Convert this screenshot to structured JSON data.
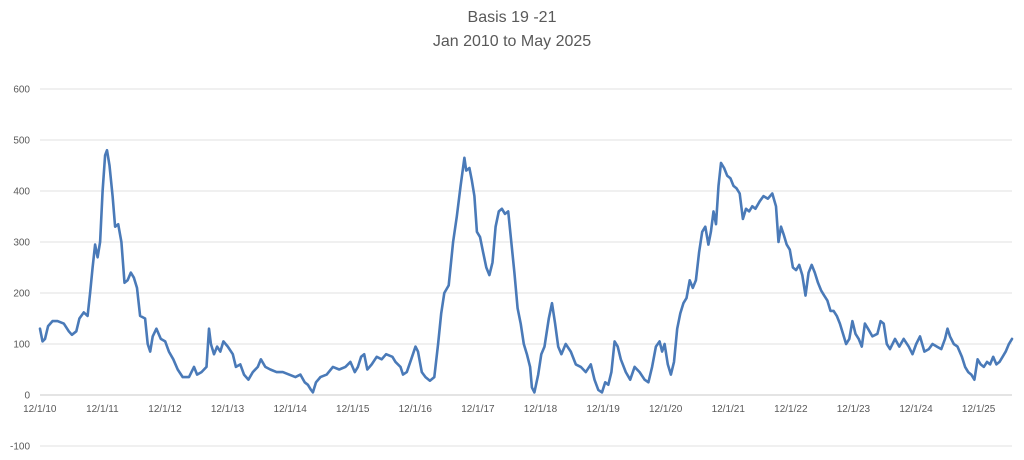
{
  "chart_data": {
    "type": "line",
    "title": "Basis 19 -21",
    "subtitle": "Jan 2010 to May 2025",
    "xlabel": "",
    "ylabel": "",
    "ylim": [
      -100,
      600
    ],
    "y_ticks": [
      "-100",
      "0",
      "100",
      "200",
      "300",
      "400",
      "500",
      "600"
    ],
    "x_tick_labels": [
      "12/1/10",
      "12/1/11",
      "12/1/12",
      "12/1/13",
      "12/1/14",
      "12/1/15",
      "12/1/16",
      "12/1/17",
      "12/1/18",
      "12/1/19",
      "12/1/20",
      "12/1/21",
      "12/1/22",
      "12/1/23",
      "12/1/24",
      "12/1/25"
    ],
    "x_range": [
      2010.92,
      2026.45
    ],
    "grid": "horizontal",
    "legend": "none",
    "line_color": "#4a7ab8",
    "series": [
      {
        "points": [
          [
            2010.92,
            130
          ],
          [
            2010.96,
            105
          ],
          [
            2011.0,
            110
          ],
          [
            2011.05,
            135
          ],
          [
            2011.12,
            145
          ],
          [
            2011.2,
            145
          ],
          [
            2011.3,
            140
          ],
          [
            2011.38,
            125
          ],
          [
            2011.43,
            118
          ],
          [
            2011.5,
            125
          ],
          [
            2011.55,
            150
          ],
          [
            2011.62,
            162
          ],
          [
            2011.68,
            155
          ],
          [
            2011.72,
            200
          ],
          [
            2011.76,
            250
          ],
          [
            2011.8,
            295
          ],
          [
            2011.84,
            270
          ],
          [
            2011.88,
            300
          ],
          [
            2011.92,
            400
          ],
          [
            2011.96,
            470
          ],
          [
            2011.99,
            480
          ],
          [
            2012.03,
            450
          ],
          [
            2012.08,
            390
          ],
          [
            2012.12,
            330
          ],
          [
            2012.17,
            335
          ],
          [
            2012.22,
            300
          ],
          [
            2012.27,
            220
          ],
          [
            2012.32,
            225
          ],
          [
            2012.37,
            240
          ],
          [
            2012.42,
            230
          ],
          [
            2012.47,
            210
          ],
          [
            2012.52,
            155
          ],
          [
            2012.6,
            150
          ],
          [
            2012.64,
            100
          ],
          [
            2012.68,
            85
          ],
          [
            2012.72,
            115
          ],
          [
            2012.78,
            130
          ],
          [
            2012.85,
            110
          ],
          [
            2012.92,
            105
          ],
          [
            2012.98,
            85
          ],
          [
            2013.05,
            70
          ],
          [
            2013.12,
            50
          ],
          [
            2013.2,
            35
          ],
          [
            2013.3,
            35
          ],
          [
            2013.38,
            55
          ],
          [
            2013.43,
            40
          ],
          [
            2013.5,
            45
          ],
          [
            2013.58,
            55
          ],
          [
            2013.62,
            130
          ],
          [
            2013.65,
            100
          ],
          [
            2013.7,
            80
          ],
          [
            2013.75,
            95
          ],
          [
            2013.8,
            85
          ],
          [
            2013.85,
            105
          ],
          [
            2013.92,
            95
          ],
          [
            2014.0,
            80
          ],
          [
            2014.05,
            55
          ],
          [
            2014.12,
            60
          ],
          [
            2014.18,
            40
          ],
          [
            2014.25,
            30
          ],
          [
            2014.32,
            45
          ],
          [
            2014.4,
            55
          ],
          [
            2014.45,
            70
          ],
          [
            2014.52,
            55
          ],
          [
            2014.6,
            50
          ],
          [
            2014.7,
            45
          ],
          [
            2014.8,
            45
          ],
          [
            2014.9,
            40
          ],
          [
            2015.0,
            35
          ],
          [
            2015.08,
            40
          ],
          [
            2015.15,
            25
          ],
          [
            2015.2,
            20
          ],
          [
            2015.25,
            10
          ],
          [
            2015.28,
            5
          ],
          [
            2015.33,
            25
          ],
          [
            2015.4,
            35
          ],
          [
            2015.5,
            40
          ],
          [
            2015.6,
            55
          ],
          [
            2015.7,
            50
          ],
          [
            2015.8,
            55
          ],
          [
            2015.88,
            65
          ],
          [
            2015.95,
            45
          ],
          [
            2016.0,
            55
          ],
          [
            2016.05,
            75
          ],
          [
            2016.1,
            80
          ],
          [
            2016.15,
            50
          ],
          [
            2016.22,
            60
          ],
          [
            2016.3,
            75
          ],
          [
            2016.38,
            70
          ],
          [
            2016.45,
            80
          ],
          [
            2016.55,
            75
          ],
          [
            2016.6,
            65
          ],
          [
            2016.68,
            55
          ],
          [
            2016.72,
            40
          ],
          [
            2016.78,
            45
          ],
          [
            2016.85,
            70
          ],
          [
            2016.92,
            95
          ],
          [
            2016.96,
            85
          ],
          [
            2017.02,
            45
          ],
          [
            2017.08,
            35
          ],
          [
            2017.15,
            28
          ],
          [
            2017.22,
            35
          ],
          [
            2017.28,
            100
          ],
          [
            2017.33,
            160
          ],
          [
            2017.38,
            200
          ],
          [
            2017.45,
            215
          ],
          [
            2017.52,
            300
          ],
          [
            2017.58,
            350
          ],
          [
            2017.64,
            410
          ],
          [
            2017.7,
            465
          ],
          [
            2017.73,
            440
          ],
          [
            2017.78,
            445
          ],
          [
            2017.82,
            420
          ],
          [
            2017.86,
            390
          ],
          [
            2017.9,
            320
          ],
          [
            2017.95,
            310
          ],
          [
            2018.0,
            280
          ],
          [
            2018.05,
            250
          ],
          [
            2018.1,
            235
          ],
          [
            2018.15,
            260
          ],
          [
            2018.2,
            330
          ],
          [
            2018.25,
            360
          ],
          [
            2018.3,
            365
          ],
          [
            2018.35,
            355
          ],
          [
            2018.4,
            360
          ],
          [
            2018.45,
            300
          ],
          [
            2018.5,
            240
          ],
          [
            2018.55,
            170
          ],
          [
            2018.6,
            140
          ],
          [
            2018.65,
            100
          ],
          [
            2018.7,
            80
          ],
          [
            2018.75,
            55
          ],
          [
            2018.78,
            15
          ],
          [
            2018.82,
            5
          ],
          [
            2018.88,
            40
          ],
          [
            2018.93,
            80
          ],
          [
            2018.98,
            95
          ],
          [
            2019.05,
            150
          ],
          [
            2019.1,
            180
          ],
          [
            2019.15,
            140
          ],
          [
            2019.2,
            95
          ],
          [
            2019.25,
            80
          ],
          [
            2019.32,
            100
          ],
          [
            2019.4,
            85
          ],
          [
            2019.48,
            60
          ],
          [
            2019.56,
            55
          ],
          [
            2019.64,
            45
          ],
          [
            2019.72,
            60
          ],
          [
            2019.78,
            30
          ],
          [
            2019.84,
            10
          ],
          [
            2019.9,
            5
          ],
          [
            2019.95,
            25
          ],
          [
            2020.0,
            20
          ],
          [
            2020.05,
            45
          ],
          [
            2020.1,
            105
          ],
          [
            2020.15,
            95
          ],
          [
            2020.2,
            70
          ],
          [
            2020.28,
            45
          ],
          [
            2020.35,
            30
          ],
          [
            2020.42,
            55
          ],
          [
            2020.5,
            45
          ],
          [
            2020.58,
            30
          ],
          [
            2020.64,
            25
          ],
          [
            2020.7,
            55
          ],
          [
            2020.76,
            95
          ],
          [
            2020.82,
            105
          ],
          [
            2020.86,
            85
          ],
          [
            2020.9,
            100
          ],
          [
            2020.95,
            60
          ],
          [
            2021.0,
            40
          ],
          [
            2021.05,
            65
          ],
          [
            2021.1,
            130
          ],
          [
            2021.15,
            160
          ],
          [
            2021.2,
            180
          ],
          [
            2021.25,
            190
          ],
          [
            2021.3,
            225
          ],
          [
            2021.35,
            210
          ],
          [
            2021.4,
            225
          ],
          [
            2021.45,
            280
          ],
          [
            2021.5,
            320
          ],
          [
            2021.55,
            330
          ],
          [
            2021.6,
            295
          ],
          [
            2021.64,
            320
          ],
          [
            2021.68,
            360
          ],
          [
            2021.72,
            335
          ],
          [
            2021.76,
            410
          ],
          [
            2021.8,
            455
          ],
          [
            2021.85,
            445
          ],
          [
            2021.9,
            430
          ],
          [
            2021.95,
            425
          ],
          [
            2022.0,
            410
          ],
          [
            2022.05,
            405
          ],
          [
            2022.1,
            395
          ],
          [
            2022.15,
            345
          ],
          [
            2022.2,
            365
          ],
          [
            2022.25,
            360
          ],
          [
            2022.3,
            370
          ],
          [
            2022.35,
            365
          ],
          [
            2022.42,
            380
          ],
          [
            2022.48,
            390
          ],
          [
            2022.55,
            385
          ],
          [
            2022.62,
            395
          ],
          [
            2022.68,
            370
          ],
          [
            2022.72,
            300
          ],
          [
            2022.76,
            330
          ],
          [
            2022.8,
            315
          ],
          [
            2022.85,
            295
          ],
          [
            2022.9,
            285
          ],
          [
            2022.95,
            250
          ],
          [
            2023.0,
            245
          ],
          [
            2023.05,
            255
          ],
          [
            2023.1,
            235
          ],
          [
            2023.15,
            195
          ],
          [
            2023.2,
            240
          ],
          [
            2023.25,
            255
          ],
          [
            2023.3,
            240
          ],
          [
            2023.35,
            220
          ],
          [
            2023.4,
            205
          ],
          [
            2023.45,
            195
          ],
          [
            2023.5,
            185
          ],
          [
            2023.55,
            165
          ],
          [
            2023.6,
            165
          ],
          [
            2023.65,
            155
          ],
          [
            2023.7,
            140
          ],
          [
            2023.75,
            120
          ],
          [
            2023.8,
            100
          ],
          [
            2023.85,
            110
          ],
          [
            2023.9,
            145
          ],
          [
            2023.95,
            120
          ],
          [
            2024.0,
            110
          ],
          [
            2024.05,
            95
          ],
          [
            2024.1,
            140
          ],
          [
            2024.15,
            130
          ],
          [
            2024.22,
            115
          ],
          [
            2024.3,
            120
          ],
          [
            2024.35,
            145
          ],
          [
            2024.4,
            140
          ],
          [
            2024.45,
            100
          ],
          [
            2024.5,
            90
          ],
          [
            2024.58,
            110
          ],
          [
            2024.65,
            95
          ],
          [
            2024.72,
            110
          ],
          [
            2024.8,
            95
          ],
          [
            2024.86,
            80
          ],
          [
            2024.92,
            100
          ],
          [
            2024.98,
            115
          ],
          [
            2025.05,
            85
          ],
          [
            2025.12,
            90
          ],
          [
            2025.18,
            100
          ],
          [
            2025.25,
            95
          ],
          [
            2025.32,
            90
          ],
          [
            2025.38,
            110
          ],
          [
            2025.42,
            130
          ],
          [
            2025.46,
            115
          ],
          [
            2025.52,
            100
          ],
          [
            2025.58,
            95
          ],
          [
            2025.65,
            75
          ],
          [
            2025.7,
            55
          ],
          [
            2025.75,
            45
          ],
          [
            2025.8,
            40
          ],
          [
            2025.85,
            30
          ],
          [
            2025.9,
            70
          ],
          [
            2025.95,
            60
          ],
          [
            2026.0,
            55
          ],
          [
            2026.05,
            65
          ],
          [
            2026.1,
            60
          ],
          [
            2026.15,
            75
          ],
          [
            2026.2,
            60
          ],
          [
            2026.25,
            65
          ],
          [
            2026.3,
            75
          ],
          [
            2026.35,
            85
          ],
          [
            2026.4,
            100
          ],
          [
            2026.45,
            110
          ]
        ]
      }
    ]
  }
}
